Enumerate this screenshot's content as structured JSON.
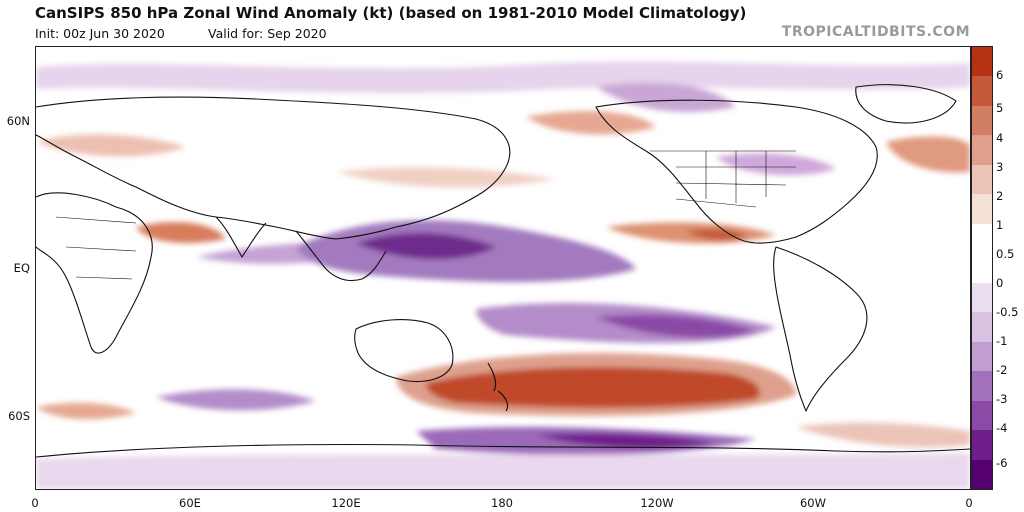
{
  "header": {
    "title": "CanSIPS 850 hPa Zonal Wind Anomaly (kt) (based on 1981-2010 Model Climatology)",
    "init_label": "Init: 00z Jun 30 2020",
    "valid_label": "Valid for: Sep 2020",
    "brand": "TROPICALTIDBITS.COM"
  },
  "axes": {
    "lat_labels": [
      "60N",
      "EQ",
      "60S"
    ],
    "lon_labels": [
      "0",
      "60E",
      "120E",
      "180",
      "120W",
      "60W",
      "0"
    ]
  },
  "colorbar": {
    "labels": [
      "6",
      "5",
      "4",
      "3",
      "2",
      "1",
      "0.5",
      "0",
      "-0.5",
      "-1",
      "-2",
      "-3",
      "-4",
      "-6"
    ],
    "colors": [
      "#b53312",
      "#c55a3a",
      "#d17f62",
      "#dea08c",
      "#ebc4b7",
      "#f5e0d7",
      "#ffffff",
      "#ffffff",
      "#eadff0",
      "#d8c2e1",
      "#c09ed2",
      "#a371bb",
      "#8a4aa6",
      "#6e1f8c",
      "#55006f"
    ]
  },
  "map": {
    "positive_color": "#c8583a",
    "negative_color": "#7a2a96"
  }
}
